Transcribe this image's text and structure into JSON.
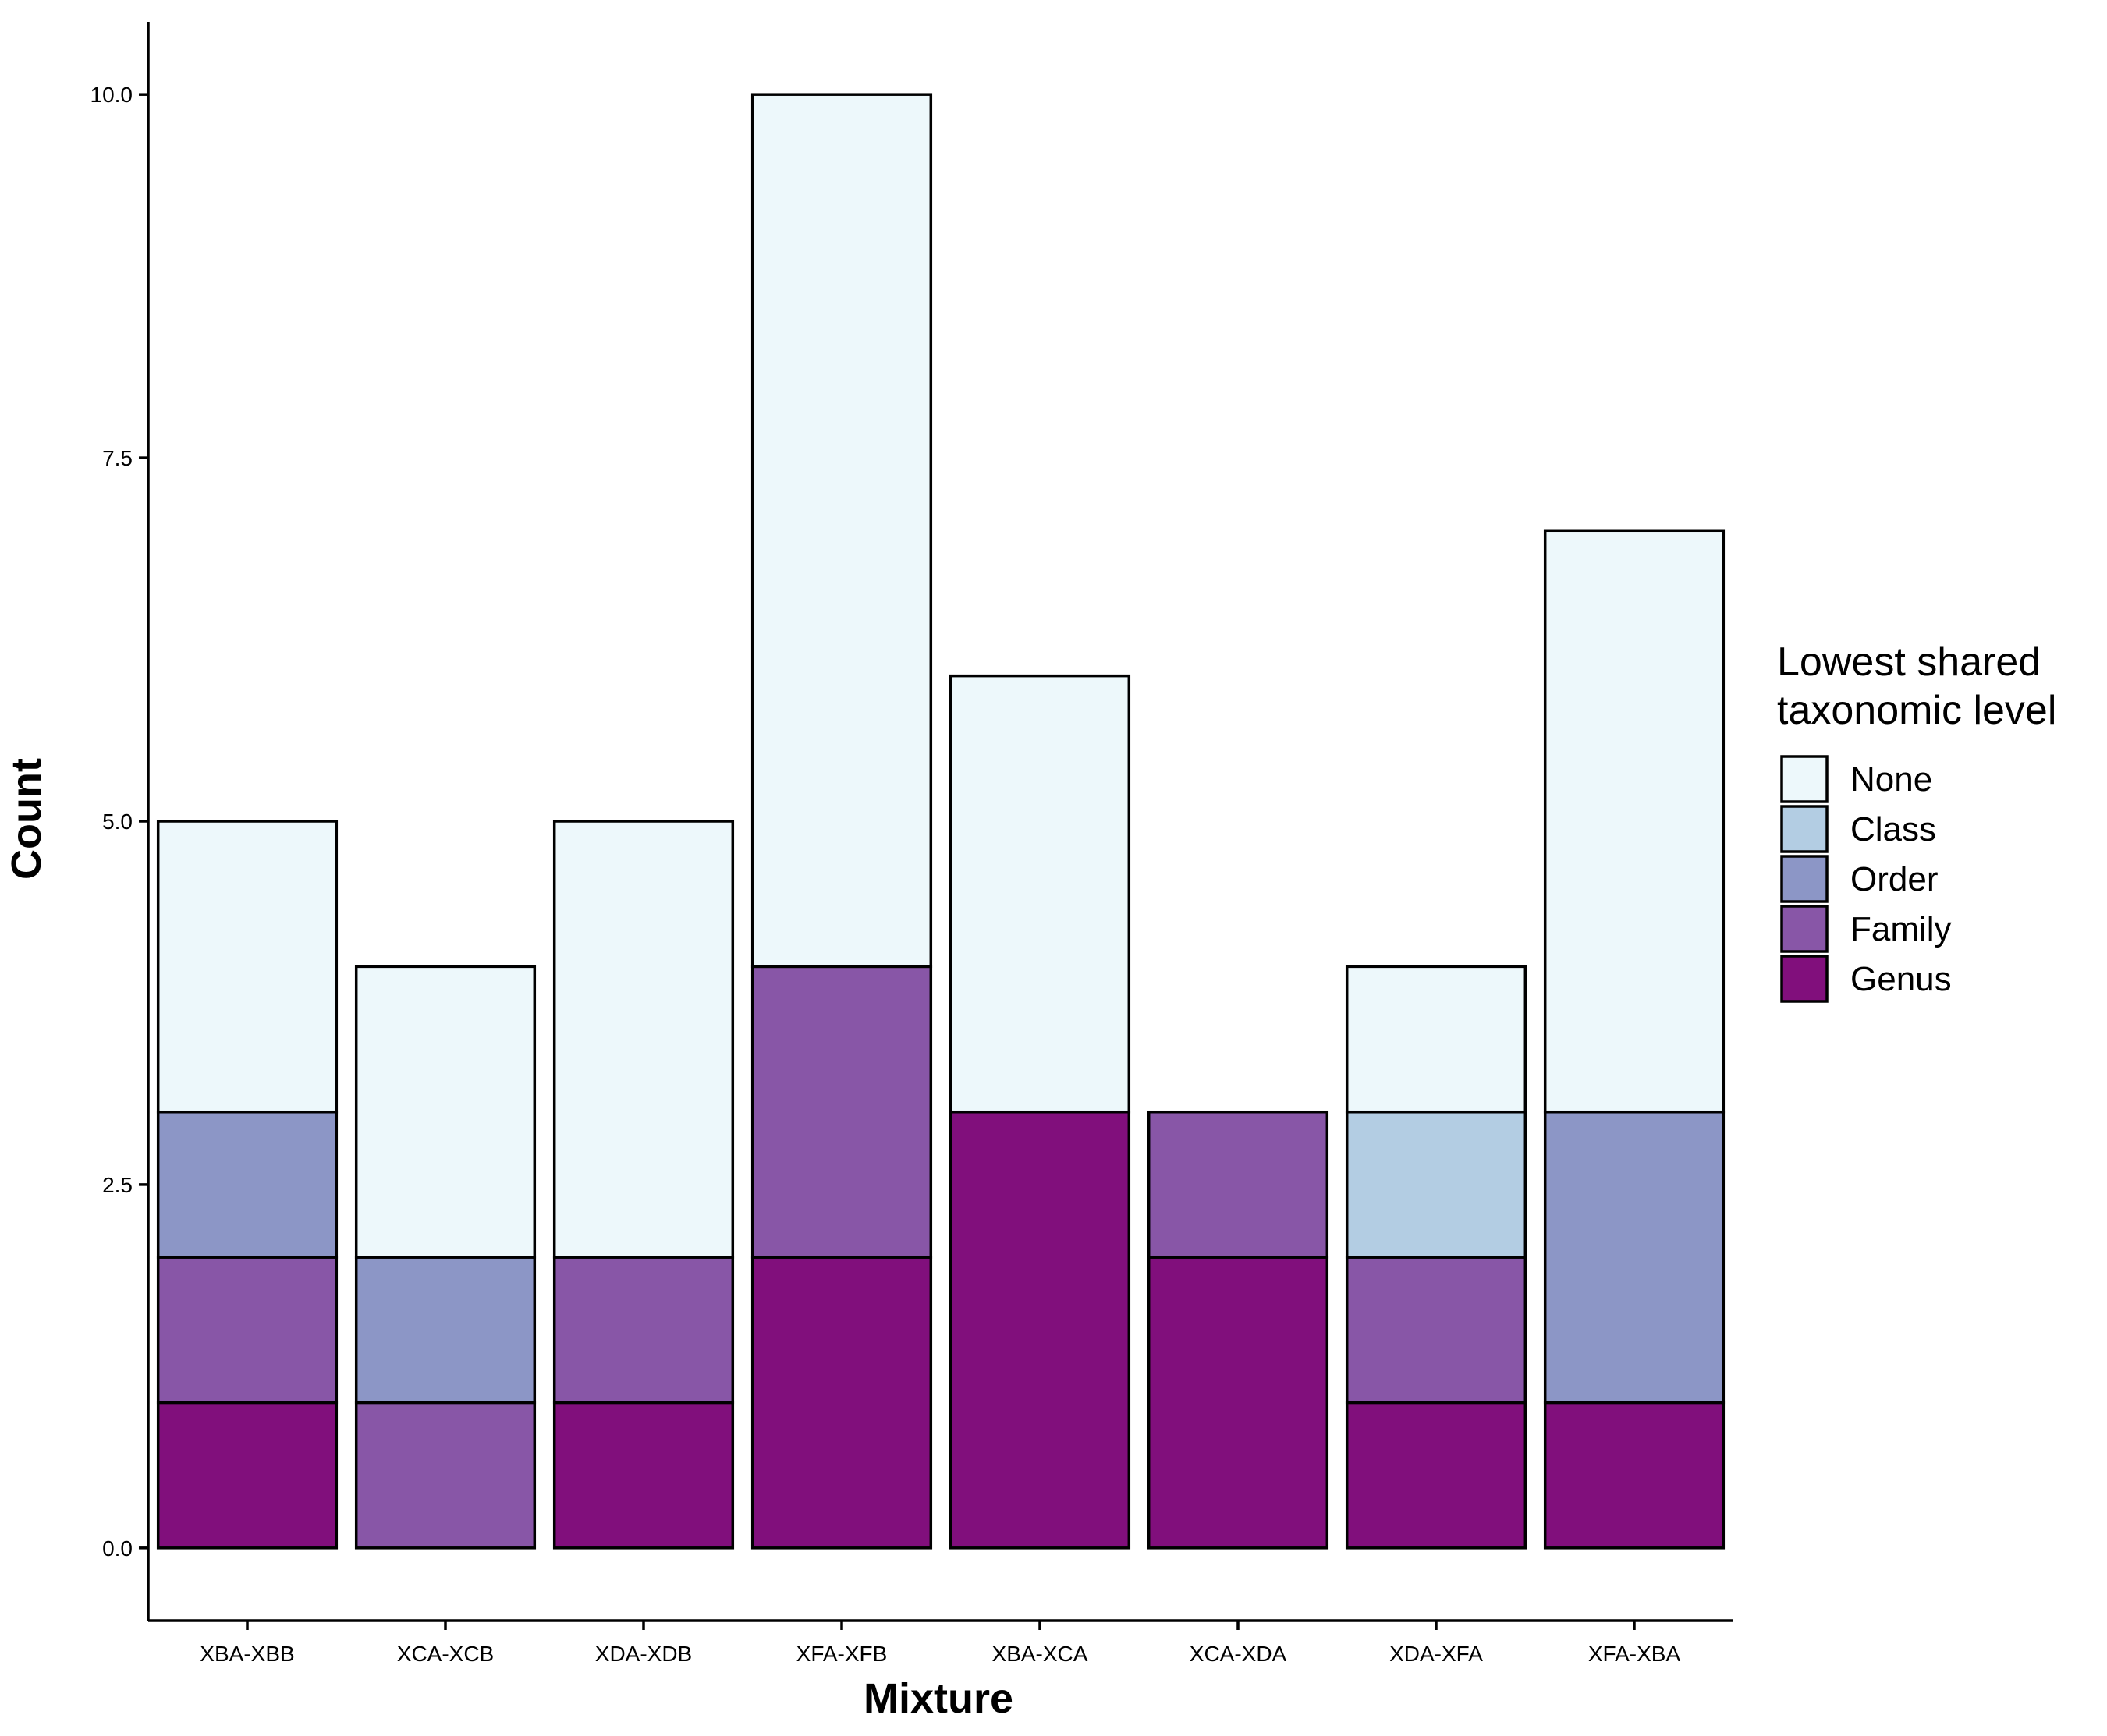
{
  "chart_data": {
    "type": "bar",
    "stacked": true,
    "xlabel": "Mixture",
    "ylabel": "Count",
    "ylim": [
      -0.5,
      10.5
    ],
    "yticks": [
      0.0,
      2.5,
      5.0,
      7.5,
      10.0
    ],
    "ytick_labels": [
      "0.0",
      "2.5",
      "5.0",
      "7.5",
      "10.0"
    ],
    "grid": false,
    "legend_position": "right",
    "legend_title_lines": [
      "Lowest shared",
      "taxonomic level"
    ],
    "categories": [
      "XBA-XBB",
      "XCA-XCB",
      "XDA-XDB",
      "XFA-XFB",
      "XBA-XCA",
      "XCA-XDA",
      "XDA-XFA",
      "XFA-XBA"
    ],
    "series": [
      {
        "name": "Genus",
        "color": "#810f7c",
        "values": [
          1,
          0,
          1,
          2,
          3,
          2,
          1,
          1
        ]
      },
      {
        "name": "Family",
        "color": "#8856a7",
        "values": [
          1,
          1,
          1,
          2,
          0,
          1,
          1,
          0
        ]
      },
      {
        "name": "Order",
        "color": "#8c96c6",
        "values": [
          1,
          1,
          0,
          0,
          0,
          0,
          0,
          2
        ]
      },
      {
        "name": "Class",
        "color": "#b3cde3",
        "values": [
          0,
          0,
          0,
          0,
          0,
          0,
          1,
          0
        ]
      },
      {
        "name": "None",
        "color": "#edf8fb",
        "values": [
          2,
          2,
          3,
          6,
          3,
          0,
          1,
          4
        ]
      }
    ],
    "legend_order": [
      "None",
      "Class",
      "Order",
      "Family",
      "Genus"
    ]
  }
}
